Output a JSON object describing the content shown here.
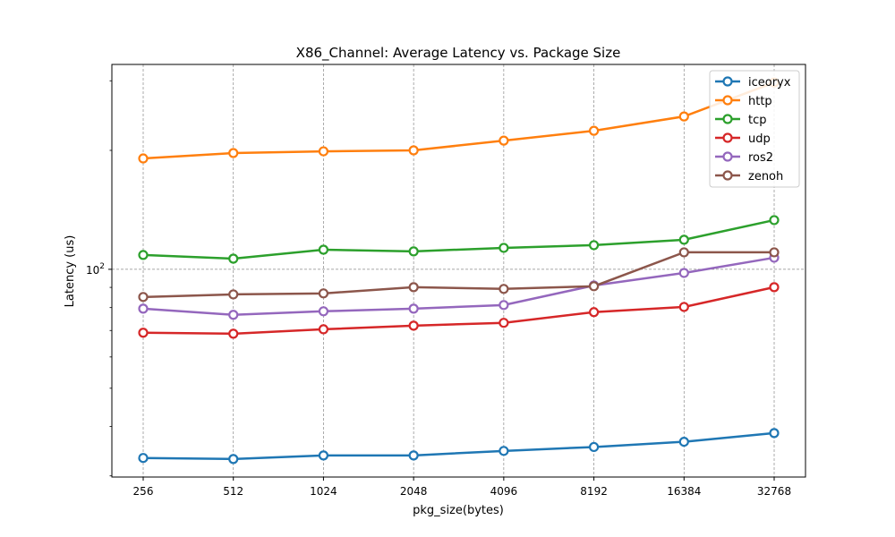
{
  "chart_data": {
    "type": "line",
    "title": "X86_Channel: Average Latency vs. Package Size",
    "xlabel": "pkg_size(bytes)",
    "ylabel": "Latency (us)",
    "yscale": "log",
    "ylim": [
      29.8,
      330
    ],
    "ytick_labels": [
      {
        "value": 100,
        "base": "10",
        "exp": "2"
      }
    ],
    "categories": [
      "256",
      "512",
      "1024",
      "2048",
      "4096",
      "8192",
      "16384",
      "32768"
    ],
    "grid": true,
    "legend_position": "top-right",
    "series": [
      {
        "name": "iceoryx",
        "color": "#1f77b4",
        "values": [
          33.3,
          33.1,
          33.8,
          33.8,
          34.7,
          35.5,
          36.6,
          38.5
        ]
      },
      {
        "name": "http",
        "color": "#ff7f0e",
        "values": [
          190.8,
          196.9,
          198.9,
          200.0,
          211.7,
          224.2,
          243.7,
          297.0
        ]
      },
      {
        "name": "tcp",
        "color": "#2ca02c",
        "values": [
          108.7,
          106.4,
          112.1,
          111.0,
          113.3,
          115.1,
          118.8,
          133.2
        ]
      },
      {
        "name": "udp",
        "color": "#d62728",
        "values": [
          69.1,
          68.7,
          70.5,
          72.0,
          73.2,
          77.9,
          80.3,
          90.1
        ]
      },
      {
        "name": "ros2",
        "color": "#9467bd",
        "values": [
          79.5,
          76.7,
          78.3,
          79.5,
          81.2,
          91.0,
          97.9,
          107.0
        ]
      },
      {
        "name": "zenoh",
        "color": "#8c564b",
        "values": [
          85.1,
          86.4,
          86.9,
          90.1,
          89.2,
          90.6,
          110.4,
          110.4
        ]
      }
    ]
  }
}
